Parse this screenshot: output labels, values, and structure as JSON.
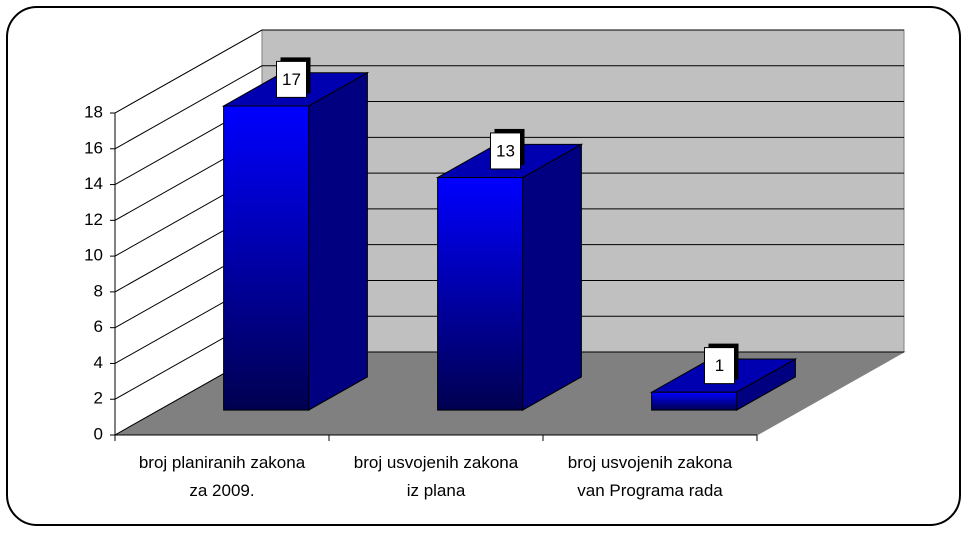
{
  "chart_data": {
    "type": "bar3d",
    "categories": [
      "broj planiranih zakona\nza 2009.",
      "broj usvojenih zakona\niz plana",
      "broj usvojenih zakona\nvan Programa rada"
    ],
    "values": [
      17,
      13,
      1
    ],
    "color": "#0000ff",
    "ylim": [
      0,
      18
    ],
    "yticks": [
      0,
      2,
      4,
      6,
      8,
      10,
      12,
      14,
      16,
      18
    ],
    "grid": true
  }
}
